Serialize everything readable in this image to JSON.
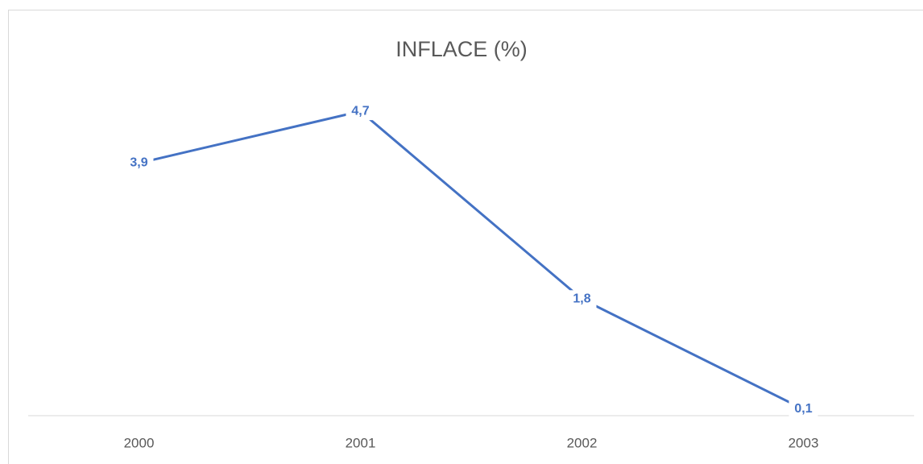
{
  "chart_data": {
    "type": "line",
    "title": "INFLACE (%)",
    "categories": [
      "2000",
      "2001",
      "2002",
      "2003"
    ],
    "series": [
      {
        "name": null,
        "color": "#4472c4",
        "values": [
          3.9,
          4.7,
          1.8,
          0.1
        ],
        "value_labels": [
          "3,9",
          "4,7",
          "1,8",
          "0,1"
        ]
      }
    ],
    "ylim": [
      0,
      5
    ]
  }
}
